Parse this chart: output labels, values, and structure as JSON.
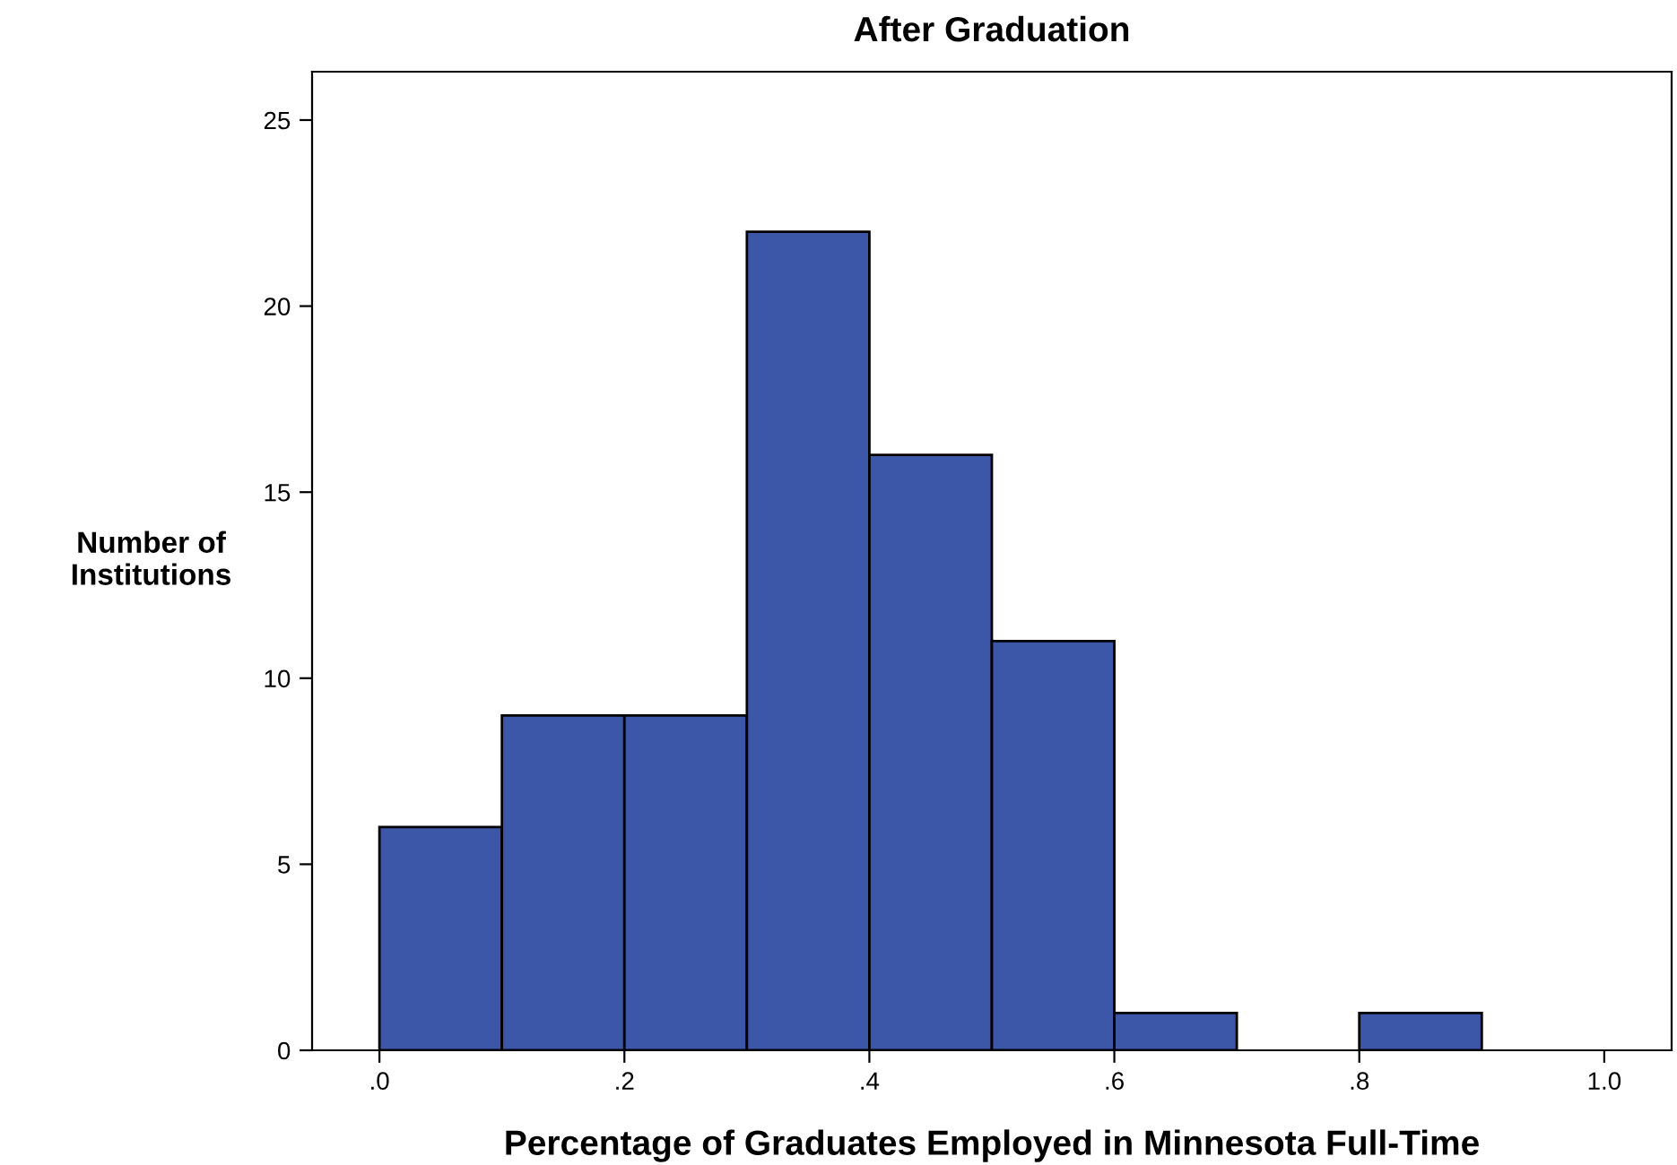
{
  "chart_data": {
    "type": "histogram",
    "title": "After Graduation",
    "xlabel": "Percentage of Graduates Employed in Minnesota Full-Time",
    "ylabel": "Number of\nInstitutions",
    "bins": [
      0,
      0.1,
      0.2,
      0.3,
      0.4,
      0.5,
      0.6,
      0.7,
      0.8,
      0.9,
      1.0
    ],
    "values": [
      6,
      9,
      9,
      22,
      16,
      11,
      1,
      0,
      1,
      0
    ],
    "color": "#3c56a8",
    "xlim": [
      -0.055,
      1.055
    ],
    "xticks": [
      {
        "value": 0,
        "label": ".0"
      },
      {
        "value": 0.2,
        "label": ".2"
      },
      {
        "value": 0.4,
        "label": ".4"
      },
      {
        "value": 0.6,
        "label": ".6"
      },
      {
        "value": 0.8,
        "label": ".8"
      },
      {
        "value": 1.0,
        "label": "1.0"
      }
    ],
    "ylim": [
      0,
      26.3
    ],
    "yticks": [
      0,
      5,
      10,
      15,
      20,
      25
    ],
    "grid": false
  }
}
